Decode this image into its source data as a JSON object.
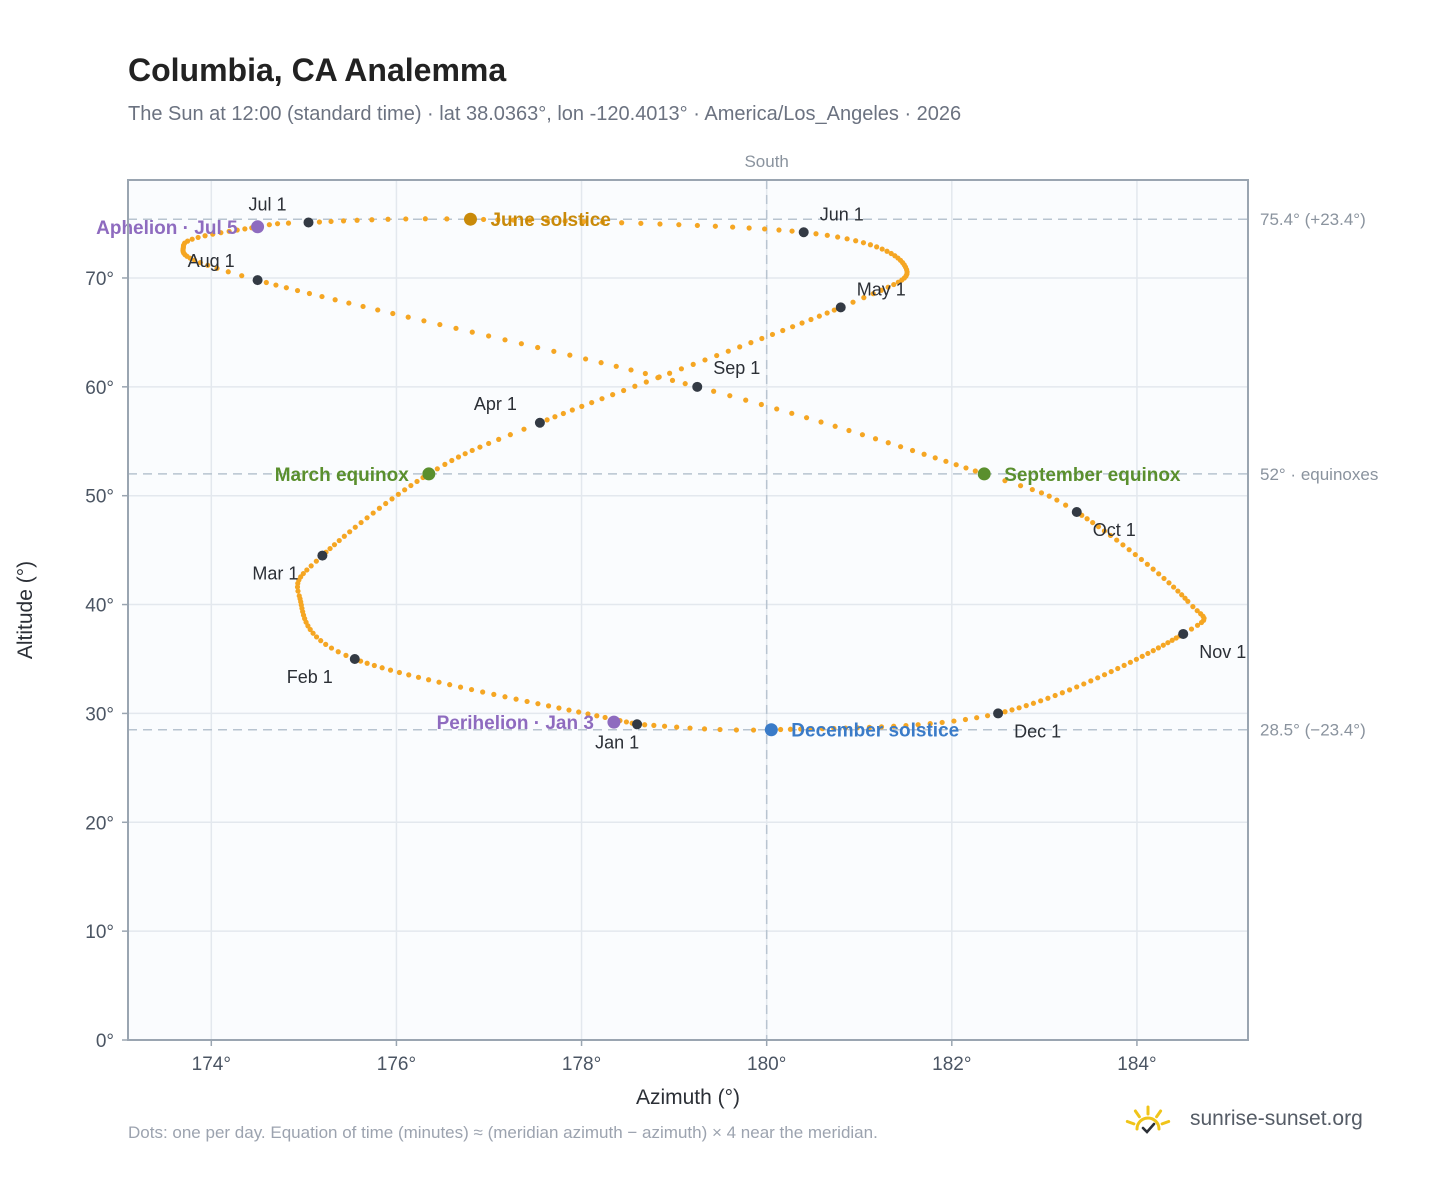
{
  "header": {
    "title": "Columbia, CA Analemma",
    "subtitle": "The Sun at 12:00 (standard time) · lat 38.0363°, lon -120.4013° · America/Los_Angeles · 2026"
  },
  "footer": {
    "note": "Dots: one per day. Equation of time (minutes) ≈ (meridian azimuth − azimuth) × 4 near the meridian.",
    "brand": "sunrise-sunset.org"
  },
  "colors": {
    "curve": "#f5a623",
    "month_marker": "#333a44",
    "equinox": "#5a8f2e",
    "june_solstice": "#c98a0a",
    "december_solstice": "#3a7bc8",
    "apsis": "#8e6bbf",
    "reference_line": "#b8c4d0",
    "plot_background": "#fafcfe",
    "brand_sun": "#f0c419"
  },
  "chart_data": {
    "type": "scatter",
    "xlabel": "Azimuth (°)",
    "ylabel": "Altitude (°)",
    "xlim": [
      173.1,
      185.2
    ],
    "ylim": [
      0,
      79
    ],
    "xticks": [
      174,
      176,
      178,
      180,
      182,
      184
    ],
    "xtick_labels": [
      "174°",
      "176°",
      "178°",
      "180°",
      "182°",
      "184°"
    ],
    "yticks": [
      0,
      10,
      20,
      30,
      40,
      50,
      60,
      70
    ],
    "ytick_labels": [
      "0°",
      "10°",
      "20°",
      "30°",
      "40°",
      "50°",
      "60°",
      "70°"
    ],
    "grid": true,
    "meridian": {
      "x": 180,
      "label": "South"
    },
    "reference_lines": [
      {
        "y": 75.4,
        "label": "75.4° (+23.4°)"
      },
      {
        "y": 52,
        "label": "52° · equinoxes"
      },
      {
        "y": 28.5,
        "label": "28.5° (−23.4°)"
      }
    ],
    "month_anchors": [
      {
        "label": "Jan 1",
        "az": 178.6,
        "alt": 29.0
      },
      {
        "label": "Feb 1",
        "az": 175.55,
        "alt": 35.0
      },
      {
        "label": "Mar 1",
        "az": 175.2,
        "alt": 44.5
      },
      {
        "label": "Apr 1",
        "az": 177.55,
        "alt": 56.7
      },
      {
        "label": "May 1",
        "az": 180.8,
        "alt": 67.3
      },
      {
        "label": "Jun 1",
        "az": 180.4,
        "alt": 74.2
      },
      {
        "label": "Jul 1",
        "az": 175.05,
        "alt": 75.1
      },
      {
        "label": "Aug 1",
        "az": 174.5,
        "alt": 69.8
      },
      {
        "label": "Sep 1",
        "az": 179.25,
        "alt": 60.0
      },
      {
        "label": "Oct 1",
        "az": 183.35,
        "alt": 48.5
      },
      {
        "label": "Nov 1",
        "az": 184.5,
        "alt": 37.3
      },
      {
        "label": "Dec 1",
        "az": 182.5,
        "alt": 30.0
      }
    ],
    "events": [
      {
        "label": "March equinox",
        "az": 176.35,
        "alt": 52.0,
        "color": "#5a8f2e",
        "side": "left"
      },
      {
        "label": "September equinox",
        "az": 182.35,
        "alt": 52.0,
        "color": "#5a8f2e",
        "side": "right"
      },
      {
        "label": "June solstice",
        "az": 176.8,
        "alt": 75.4,
        "color": "#c98a0a",
        "side": "right"
      },
      {
        "label": "December solstice",
        "az": 180.05,
        "alt": 28.5,
        "color": "#3a7bc8",
        "side": "right"
      },
      {
        "label": "Perihelion · Jan 3",
        "az": 178.35,
        "alt": 29.2,
        "color": "#8e6bbf",
        "side": "left"
      },
      {
        "label": "Aphelion · Jul 5",
        "az": 174.5,
        "alt": 74.7,
        "color": "#8e6bbf",
        "side": "left"
      }
    ],
    "curve_control_points": [
      {
        "day": 1,
        "az": 178.6,
        "alt": 29.0
      },
      {
        "day": 32,
        "az": 175.55,
        "alt": 35.0
      },
      {
        "day": 50,
        "az": 174.95,
        "alt": 40.8
      },
      {
        "day": 60,
        "az": 175.2,
        "alt": 44.5
      },
      {
        "day": 79,
        "az": 176.35,
        "alt": 52.0
      },
      {
        "day": 91,
        "az": 177.55,
        "alt": 56.7
      },
      {
        "day": 121,
        "az": 180.8,
        "alt": 67.3
      },
      {
        "day": 135,
        "az": 181.5,
        "alt": 71.0
      },
      {
        "day": 152,
        "az": 180.4,
        "alt": 74.2
      },
      {
        "day": 172,
        "az": 176.8,
        "alt": 75.4
      },
      {
        "day": 182,
        "az": 175.05,
        "alt": 75.1
      },
      {
        "day": 186,
        "az": 174.5,
        "alt": 74.7
      },
      {
        "day": 198,
        "az": 173.7,
        "alt": 73.0
      },
      {
        "day": 213,
        "az": 174.5,
        "alt": 69.8
      },
      {
        "day": 244,
        "az": 179.25,
        "alt": 60.0
      },
      {
        "day": 266,
        "az": 182.35,
        "alt": 52.0
      },
      {
        "day": 274,
        "az": 183.35,
        "alt": 48.5
      },
      {
        "day": 295,
        "az": 184.55,
        "alt": 40.3
      },
      {
        "day": 305,
        "az": 184.5,
        "alt": 37.3
      },
      {
        "day": 335,
        "az": 182.5,
        "alt": 30.0
      },
      {
        "day": 355,
        "az": 180.05,
        "alt": 28.5
      },
      {
        "day": 365,
        "az": 178.6,
        "alt": 29.0
      }
    ]
  }
}
